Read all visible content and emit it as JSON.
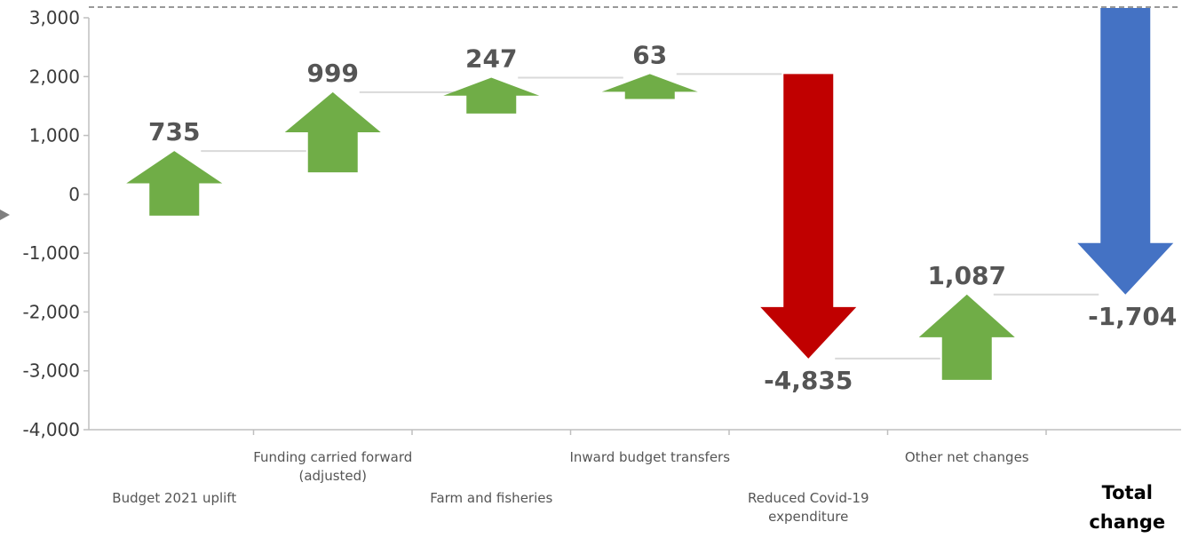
{
  "chart_data": {
    "type": "waterfall",
    "title": "",
    "xlabel": "",
    "ylabel": "",
    "ylim": [
      -4000,
      3000
    ],
    "y_ticks": [
      "3,000",
      "2,000",
      "1,000",
      "0",
      "-1,000",
      "-2,000",
      "-3,000",
      "-4,000"
    ],
    "y_tick_values": [
      3000,
      2000,
      1000,
      0,
      -1000,
      -2000,
      -3000,
      -4000
    ],
    "grid": false,
    "categories": [
      {
        "label": [
          "Budget 2021 uplift"
        ],
        "value": 735,
        "value_label": "735",
        "direction": "up",
        "color": "#70ad47"
      },
      {
        "label": [
          "Funding carried forward",
          "(adjusted)"
        ],
        "value": 999,
        "value_label": "999",
        "direction": "up",
        "color": "#70ad47"
      },
      {
        "label": [
          "Farm and fisheries"
        ],
        "value": 247,
        "value_label": "247",
        "direction": "up",
        "color": "#70ad47"
      },
      {
        "label": [
          "Inward budget transfers"
        ],
        "value": 63,
        "value_label": "63",
        "direction": "up",
        "color": "#70ad47"
      },
      {
        "label": [
          "Reduced Covid-19",
          "expenditure"
        ],
        "value": -4835,
        "value_label": "-4,835",
        "direction": "down",
        "color": "#c00000"
      },
      {
        "label": [
          "Other net changes"
        ],
        "value": 1087,
        "value_label": "1,087",
        "direction": "up",
        "color": "#70ad47"
      },
      {
        "label": [
          "Total",
          "change"
        ],
        "value": -1704,
        "value_label": "-1,704",
        "direction": "down",
        "color": "#4472c4",
        "bold": true
      }
    ]
  }
}
